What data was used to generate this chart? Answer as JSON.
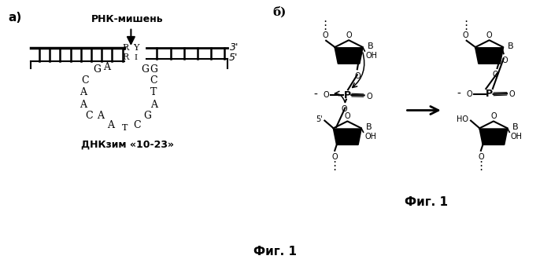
{
  "panel_a_label": "а)",
  "panel_b_label": "б)",
  "rna_target_label": "РНК-мишень",
  "dnazyme_label": "ДНКзим «10-23»",
  "fig_label": "Фиг. 1",
  "bg_color": "#ffffff"
}
